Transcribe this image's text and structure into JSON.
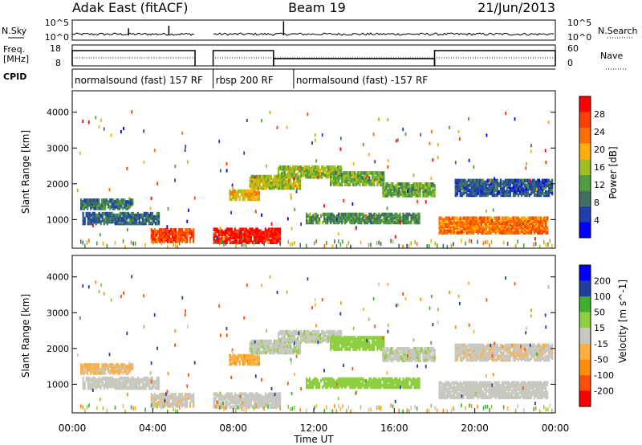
{
  "header": {
    "station": "Adak East (fitACF)",
    "beam": "Beam 19",
    "date": "21/Jun/2013"
  },
  "side_labels": {
    "nsky": "N.Sky",
    "nsearch": "N.Search",
    "freq_line1": "Freq.",
    "freq_line2": "[MHz]",
    "nave": "Nave",
    "cpid": "CPID"
  },
  "colors": {
    "power_scale": [
      "#0000ff",
      "#1f3faf",
      "#3f6f5f",
      "#4f9f3f",
      "#9fbf1f",
      "#ffaf00",
      "#ff6f00",
      "#ff3f00",
      "#ff0000"
    ],
    "velocity_scale": [
      "#ff0000",
      "#ff4f00",
      "#ff8f00",
      "#ffaf3f",
      "#c8c8c0",
      "#8fcf3f",
      "#3faf2f",
      "#1f3f9f",
      "#0000ff"
    ]
  },
  "chart_data": [
    {
      "type": "line",
      "panel": "noise",
      "ylabel_left": "N.Sky",
      "ylabel_right": "N.Search",
      "y_ticks_left": [
        "10^5",
        "10^0"
      ],
      "y_ticks_right": [
        "10^5",
        "10^0"
      ],
      "x_range_hours": [
        0,
        24
      ],
      "data_gap_hours": [
        6.1,
        7.0
      ],
      "spikes": [
        {
          "x": 2.8,
          "y": 0.4
        },
        {
          "x": 4.8,
          "y": 0.55
        },
        {
          "x": 10.5,
          "y": 0.8
        }
      ]
    },
    {
      "type": "line",
      "panel": "frequency",
      "ylabel_left_lines": [
        "Freq.",
        "[MHz]"
      ],
      "ylabel_right": "Nave",
      "y_ticks_left": [
        "18",
        "8"
      ],
      "y_ticks_right": [
        "60",
        "0"
      ],
      "x_range_hours": [
        0,
        24
      ],
      "freq_segments": [
        {
          "x0": 0.0,
          "x1": 6.1,
          "level": "high"
        },
        {
          "x0": 7.0,
          "x1": 10.0,
          "level": "high"
        },
        {
          "x0": 10.0,
          "x1": 18.0,
          "level": "low"
        },
        {
          "x0": 18.0,
          "x1": 24.0,
          "level": "high"
        }
      ]
    },
    {
      "type": "table",
      "panel": "cpid",
      "label": "CPID",
      "segments": [
        {
          "label": "normalsound (fast) 157 RF",
          "x0": 0.0,
          "x1": 6.1
        },
        {
          "label": "rbsp 200 RF",
          "x0": 7.0,
          "x1": 11.0
        },
        {
          "label": "normalsound (fast) -157 RF",
          "x0": 11.0,
          "x1": 24.0
        }
      ]
    },
    {
      "type": "heatmap",
      "panel": "power",
      "ylabel": "Slant Range [km]",
      "y_ticks": [
        "1000",
        "2000",
        "3000",
        "4000"
      ],
      "ylim": [
        200,
        4600
      ],
      "x_range_hours": [
        0,
        24
      ],
      "colorbar": {
        "label": "Power [dB]",
        "ticks": [
          "4",
          "8",
          "12",
          "16",
          "20",
          "24",
          "28"
        ],
        "range": [
          0,
          32
        ]
      },
      "echo_bands": [
        {
          "x0": 0.4,
          "x1": 3.0,
          "r": 1450,
          "w": 260,
          "v": 9
        },
        {
          "x0": 0.5,
          "x1": 4.3,
          "r": 1050,
          "w": 300,
          "v": 8
        },
        {
          "x0": 3.9,
          "x1": 6.0,
          "r": 580,
          "w": 360,
          "v": 26
        },
        {
          "x0": 7.0,
          "x1": 10.3,
          "r": 560,
          "w": 380,
          "v": 30
        },
        {
          "x0": 7.8,
          "x1": 9.3,
          "r": 1700,
          "w": 250,
          "v": 19
        },
        {
          "x0": 8.8,
          "x1": 11.3,
          "r": 2050,
          "w": 320,
          "v": 16
        },
        {
          "x0": 10.2,
          "x1": 13.4,
          "r": 2350,
          "w": 300,
          "v": 15
        },
        {
          "x0": 12.8,
          "x1": 15.5,
          "r": 2150,
          "w": 320,
          "v": 14
        },
        {
          "x0": 15.4,
          "x1": 18.0,
          "r": 1850,
          "w": 340,
          "v": 13
        },
        {
          "x0": 11.6,
          "x1": 17.2,
          "r": 1050,
          "w": 250,
          "v": 11
        },
        {
          "x0": 18.2,
          "x1": 23.6,
          "r": 850,
          "w": 420,
          "v": 23
        },
        {
          "x0": 19.0,
          "x1": 23.8,
          "r": 1900,
          "w": 420,
          "v": 7
        }
      ]
    },
    {
      "type": "heatmap",
      "panel": "velocity",
      "ylabel": "Slant Range [km]",
      "y_ticks": [
        "1000",
        "2000",
        "3000",
        "4000"
      ],
      "ylim": [
        200,
        4600
      ],
      "x_range_hours": [
        0,
        24
      ],
      "xlabel": "Time UT",
      "x_ticks": [
        "00:00",
        "04:00",
        "08:00",
        "12:00",
        "16:00",
        "20:00",
        "00:00"
      ],
      "colorbar": {
        "label": "Velocity [m s^-1]",
        "ticks": [
          "-200",
          "-100",
          "-50",
          "-15",
          "15",
          "50",
          "100",
          "200"
        ],
        "range": [
          -250,
          250
        ]
      },
      "echo_bands": [
        {
          "x0": 0.4,
          "x1": 3.0,
          "r": 1450,
          "w": 260,
          "v": -20
        },
        {
          "x0": 0.5,
          "x1": 4.3,
          "r": 1050,
          "w": 300,
          "v": 0
        },
        {
          "x0": 3.9,
          "x1": 6.0,
          "r": 580,
          "w": 360,
          "v": -5
        },
        {
          "x0": 7.0,
          "x1": 10.3,
          "r": 560,
          "w": 380,
          "v": 0
        },
        {
          "x0": 7.8,
          "x1": 9.3,
          "r": 1700,
          "w": 250,
          "v": -40
        },
        {
          "x0": 8.8,
          "x1": 11.3,
          "r": 2050,
          "w": 320,
          "v": 5
        },
        {
          "x0": 10.2,
          "x1": 13.4,
          "r": 2350,
          "w": 300,
          "v": 5
        },
        {
          "x0": 12.8,
          "x1": 15.5,
          "r": 2150,
          "w": 320,
          "v": 35
        },
        {
          "x0": 15.4,
          "x1": 18.0,
          "r": 1850,
          "w": 340,
          "v": 5
        },
        {
          "x0": 11.6,
          "x1": 17.2,
          "r": 1050,
          "w": 250,
          "v": 30
        },
        {
          "x0": 18.2,
          "x1": 23.6,
          "r": 850,
          "w": 420,
          "v": 0
        },
        {
          "x0": 19.0,
          "x1": 23.8,
          "r": 1900,
          "w": 420,
          "v": -5
        }
      ]
    }
  ]
}
